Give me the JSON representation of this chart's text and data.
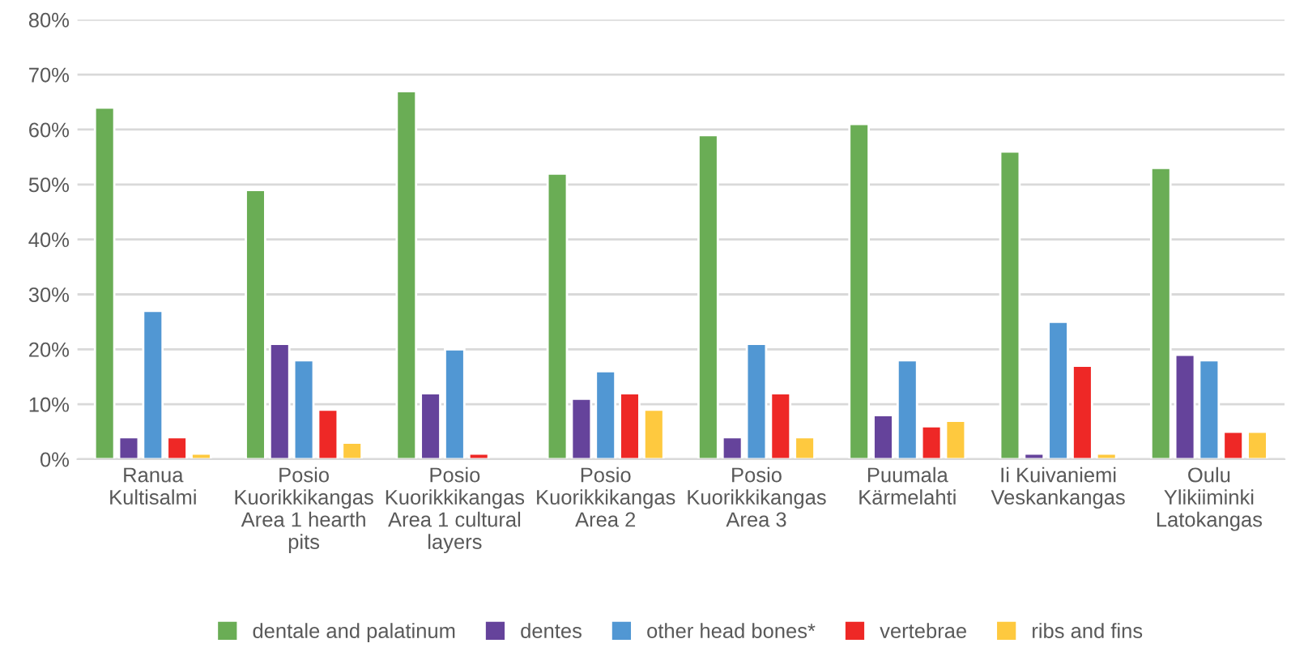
{
  "chart_data": {
    "type": "bar",
    "categories": [
      "Ranua\nKultisalmi",
      "Posio\nKuorikkikangas\nArea 1 hearth\npits",
      "Posio\nKuorikkikangas\nArea 1 cultural\nlayers",
      "Posio\nKuorikkikangas\nArea 2",
      "Posio\nKuorikkikangas\nArea 3",
      "Puumala\nKärmelahti",
      "Ii Kuivaniemi\nVeskankangas",
      "Oulu\nYlikiiminki\nLatokangas"
    ],
    "series": [
      {
        "name": "dentale and palatinum",
        "color": "#6aad55",
        "values": [
          64,
          49,
          67,
          52,
          59,
          61,
          56,
          53
        ]
      },
      {
        "name": "dentes",
        "color": "#65439b",
        "values": [
          4,
          21,
          12,
          11,
          4,
          8,
          1,
          19
        ]
      },
      {
        "name": "other head bones*",
        "color": "#5197d3",
        "values": [
          27,
          18,
          20,
          16,
          21,
          18,
          25,
          18
        ]
      },
      {
        "name": "vertebrae",
        "color": "#ee2826",
        "values": [
          4,
          9,
          1,
          12,
          12,
          6,
          17,
          5
        ]
      },
      {
        "name": "ribs and fins",
        "color": "#fec93f",
        "values": [
          1,
          3,
          null,
          9,
          4,
          7,
          1,
          5
        ]
      }
    ],
    "ylim": [
      0,
      80
    ],
    "yticks": [
      {
        "value": 0,
        "label": "0%"
      },
      {
        "value": 10,
        "label": "10%"
      },
      {
        "value": 20,
        "label": "20%"
      },
      {
        "value": 30,
        "label": "30%"
      },
      {
        "value": 40,
        "label": "40%"
      },
      {
        "value": 50,
        "label": "50%"
      },
      {
        "value": 60,
        "label": "60%"
      },
      {
        "value": 70,
        "label": "70%"
      },
      {
        "value": 80,
        "label": "80%"
      }
    ],
    "grid": "y",
    "legend": "bottom"
  }
}
